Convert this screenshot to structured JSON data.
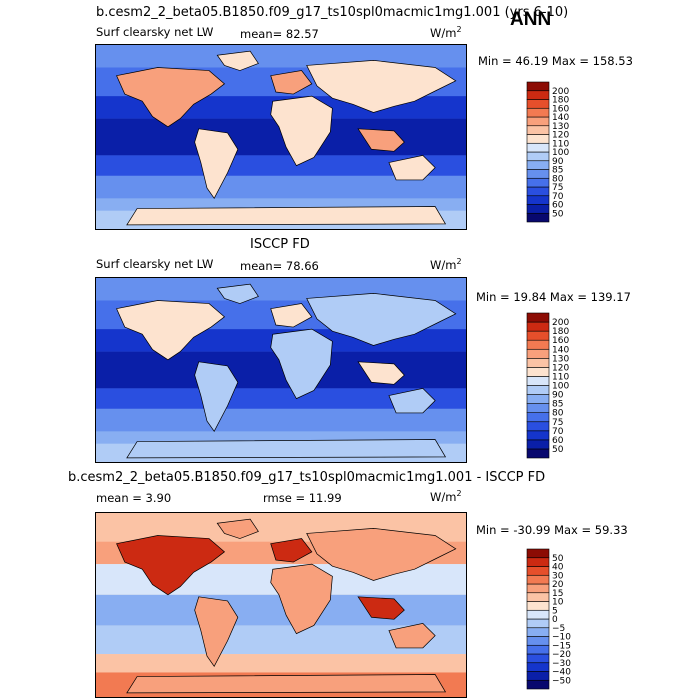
{
  "season": "ANN",
  "panels": [
    {
      "title": "b.cesm2_2_beta05.B1850.f09_g17_ts10spl0macmic1mg1.001 (yrs 6-10)",
      "left_label": "Surf clearsky net LW",
      "stat1": "mean=  82.57",
      "stat2": "",
      "units_base": "W/m",
      "units_exp": "2",
      "minmax": "Min =  46.19 Max = 158.53"
    },
    {
      "title": "ISCCP FD",
      "left_label": "Surf clearsky net LW",
      "stat1": "mean=  78.66",
      "stat2": "",
      "units_base": "W/m",
      "units_exp": "2",
      "minmax": "Min =  19.84 Max = 139.17"
    },
    {
      "title": "b.cesm2_2_beta05.B1850.f09_g17_ts10spl0macmic1mg1.001 - ISCCP FD",
      "left_label": "",
      "stat1": "mean =   3.90",
      "stat2": "rmse =  11.99",
      "units_base": "W/m",
      "units_exp": "2",
      "minmax": "Min = -30.99 Max =  59.33"
    }
  ],
  "chart_data": [
    {
      "type": "heatmap",
      "title": "b.cesm2_2_beta05.B1850.f09_g17_ts10spl0macmic1mg1.001 (yrs 6-10)",
      "variable": "Surf clearsky net LW",
      "units": "W/m2",
      "mean": 82.57,
      "min": 46.19,
      "max": 158.53,
      "colorbar_levels": [
        50,
        60,
        70,
        75,
        80,
        85,
        90,
        100,
        110,
        120,
        130,
        140,
        160,
        180,
        200
      ],
      "colorbar_labels": [
        "50",
        "60",
        "70",
        "75",
        "80",
        "85",
        "90",
        "100",
        "110",
        "120",
        "130",
        "140",
        "160",
        "180",
        "200"
      ],
      "colors": [
        "#08086e",
        "#0a1fa8",
        "#1535cc",
        "#2a4fe0",
        "#4670ea",
        "#6690ee",
        "#88aef2",
        "#b0ccf6",
        "#d8e6fa",
        "#fde3cf",
        "#fbc3a5",
        "#f8a07c",
        "#f27a52",
        "#e64f2b",
        "#cc2a12",
        "#8c0c04"
      ]
    },
    {
      "type": "heatmap",
      "title": "ISCCP FD",
      "variable": "Surf clearsky net LW",
      "units": "W/m2",
      "mean": 78.66,
      "min": 19.84,
      "max": 139.17,
      "colorbar_levels": [
        50,
        60,
        70,
        75,
        80,
        85,
        90,
        100,
        110,
        120,
        130,
        140,
        160,
        180,
        200
      ],
      "colorbar_labels": [
        "50",
        "60",
        "70",
        "75",
        "80",
        "85",
        "90",
        "100",
        "110",
        "120",
        "130",
        "140",
        "160",
        "180",
        "200"
      ],
      "colors": [
        "#08086e",
        "#0a1fa8",
        "#1535cc",
        "#2a4fe0",
        "#4670ea",
        "#6690ee",
        "#88aef2",
        "#b0ccf6",
        "#d8e6fa",
        "#fde3cf",
        "#fbc3a5",
        "#f8a07c",
        "#f27a52",
        "#e64f2b",
        "#cc2a12",
        "#8c0c04"
      ]
    },
    {
      "type": "heatmap",
      "title": "b.cesm2_2_beta05.B1850.f09_g17_ts10spl0macmic1mg1.001 - ISCCP FD",
      "variable": "",
      "units": "W/m2",
      "mean": 3.9,
      "rmse": 11.99,
      "min": -30.99,
      "max": 59.33,
      "colorbar_levels": [
        -50,
        -40,
        -30,
        -20,
        -15,
        -10,
        -5,
        0,
        5,
        10,
        15,
        20,
        30,
        40,
        50
      ],
      "colorbar_labels": [
        "−50",
        "−40",
        "−30",
        "−20",
        "−15",
        "−10",
        "−5",
        "0",
        "5",
        "10",
        "15",
        "20",
        "30",
        "40",
        "50"
      ],
      "colors": [
        "#08086e",
        "#0a1fa8",
        "#1535cc",
        "#2a4fe0",
        "#4670ea",
        "#6690ee",
        "#88aef2",
        "#b0ccf6",
        "#d8e6fa",
        "#fde3cf",
        "#fbc3a5",
        "#f8a07c",
        "#f27a52",
        "#e64f2b",
        "#cc2a12",
        "#8c0c04"
      ]
    }
  ]
}
